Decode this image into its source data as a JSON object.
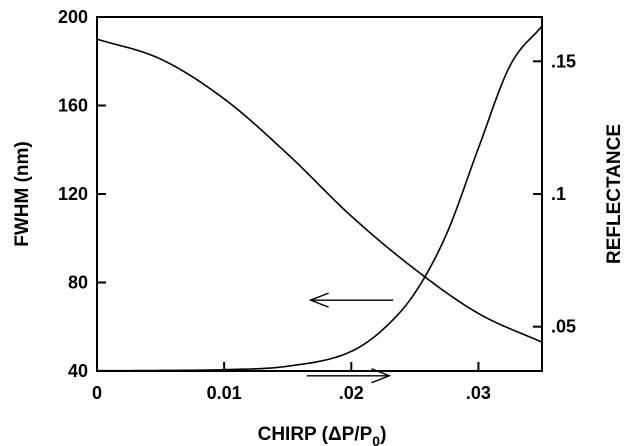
{
  "chart_data": {
    "type": "line",
    "title": "",
    "xlabel": "CHIRP  (ΔP/P",
    "xlabel_subscript": "0",
    "xlabel_suffix": ")",
    "ylabel_left": "FWHM  (nm)",
    "ylabel_right": "REFLECTANCE",
    "xlim": [
      0,
      0.035
    ],
    "ylim_left": [
      40,
      200
    ],
    "ylim_right": [
      0.0333,
      0.1667
    ],
    "x_ticks": [
      0,
      0.01,
      0.02,
      0.03
    ],
    "x_tick_labels": [
      "0",
      "0.01",
      ".02",
      ".03"
    ],
    "y_left_ticks": [
      40,
      80,
      120,
      160,
      200
    ],
    "y_left_tick_labels": [
      "40",
      "80",
      "120",
      "160",
      "200"
    ],
    "y_right_ticks": [
      0.05,
      0.1,
      0.15
    ],
    "y_right_tick_labels": [
      ".05",
      ".1",
      ".15"
    ],
    "grid": false,
    "series": [
      {
        "axis": "left",
        "color": "#000000",
        "x": [
          0,
          0.005,
          0.01,
          0.015,
          0.02,
          0.025,
          0.03,
          0.035
        ],
        "values": [
          190,
          181,
          163,
          138,
          110,
          86,
          66,
          53
        ]
      },
      {
        "axis": "right",
        "color": "#000000",
        "x": [
          0,
          0.005,
          0.01,
          0.015,
          0.02,
          0.0225,
          0.025,
          0.0275,
          0.03,
          0.0325,
          0.035
        ],
        "values": [
          0.0334,
          0.0335,
          0.0338,
          0.0351,
          0.0407,
          0.049,
          0.0627,
          0.085,
          0.1173,
          0.1485,
          0.1633
        ]
      }
    ],
    "annotations": [
      {
        "type": "arrow",
        "direction": "right",
        "points_to": "right-axis",
        "from": [
          0.0165,
          0.0315
        ],
        "to": [
          0.023,
          0.0315
        ]
      },
      {
        "type": "arrow",
        "direction": "left",
        "points_to": "left-axis",
        "from": [
          0.0233,
          0.06
        ],
        "to": [
          0.0168,
          0.06
        ]
      }
    ]
  }
}
